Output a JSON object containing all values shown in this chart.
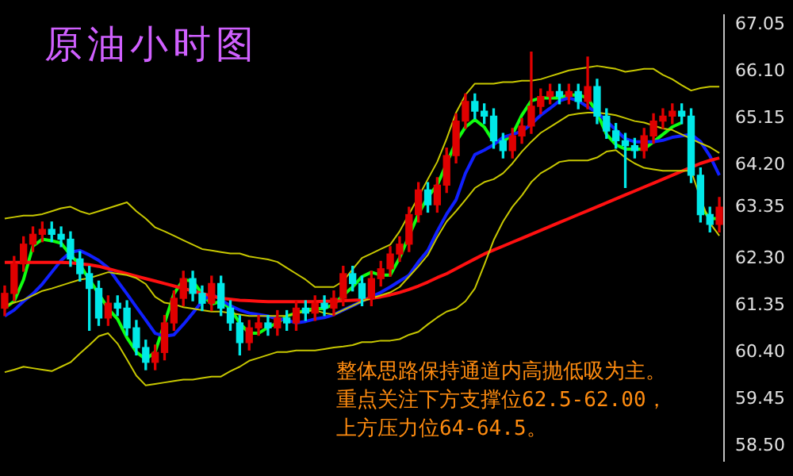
{
  "chart_data": {
    "type": "candlestick",
    "title": "原油小时图",
    "annotations": [
      "整体思路保持通道内高抛低吸为主。",
      "重点关注下方支撑位62.5-62.00，",
      "上方压力位64-64.5。"
    ],
    "categories": [
      null,
      null,
      null,
      null,
      null,
      null,
      null,
      null,
      null,
      null,
      null,
      null,
      null,
      null,
      null,
      null,
      null,
      null,
      null,
      null,
      null,
      null,
      null,
      null,
      null,
      null,
      null,
      null,
      null,
      null,
      null,
      null,
      null,
      null,
      null,
      null,
      null,
      null,
      null,
      null,
      null,
      null,
      null,
      null,
      null,
      null,
      null,
      null,
      null,
      null,
      null,
      null,
      null,
      null,
      null,
      null,
      null,
      null,
      null,
      null,
      null,
      null,
      null,
      null,
      null,
      null,
      null,
      null,
      null,
      null,
      null,
      null,
      null,
      null,
      null,
      null,
      null
    ],
    "ohlc": [
      [
        61.3,
        61.75,
        61.15,
        61.6
      ],
      [
        61.6,
        62.35,
        61.45,
        62.2
      ],
      [
        62.2,
        62.75,
        62.05,
        62.6
      ],
      [
        62.6,
        62.95,
        62.45,
        62.8
      ],
      [
        62.8,
        63.05,
        62.65,
        62.9
      ],
      [
        62.9,
        63.05,
        62.65,
        62.8
      ],
      [
        62.8,
        62.95,
        62.55,
        62.7
      ],
      [
        62.7,
        62.85,
        62.15,
        62.3
      ],
      [
        62.3,
        62.45,
        61.85,
        62.0
      ],
      [
        62.0,
        62.15,
        60.85,
        61.7
      ],
      [
        61.7,
        61.85,
        60.95,
        61.1
      ],
      [
        61.1,
        61.55,
        60.95,
        61.4
      ],
      [
        61.4,
        61.55,
        61.15,
        61.3
      ],
      [
        61.3,
        61.45,
        60.75,
        60.9
      ],
      [
        60.9,
        61.05,
        60.35,
        60.5
      ],
      [
        60.5,
        60.65,
        60.05,
        60.2
      ],
      [
        60.2,
        60.55,
        60.05,
        60.4
      ],
      [
        60.4,
        61.15,
        60.25,
        61.0
      ],
      [
        61.0,
        61.65,
        60.85,
        61.5
      ],
      [
        61.5,
        62.05,
        61.35,
        61.9
      ],
      [
        61.9,
        62.05,
        61.45,
        61.6
      ],
      [
        61.6,
        61.75,
        61.25,
        61.4
      ],
      [
        61.4,
        61.95,
        61.25,
        61.8
      ],
      [
        61.8,
        61.95,
        61.15,
        61.3
      ],
      [
        61.3,
        61.45,
        60.85,
        61.0
      ],
      [
        61.0,
        61.15,
        60.35,
        60.6
      ],
      [
        60.6,
        61.05,
        60.45,
        60.9
      ],
      [
        60.9,
        61.15,
        60.75,
        61.0
      ],
      [
        61.0,
        61.15,
        60.75,
        60.9
      ],
      [
        60.9,
        61.25,
        60.75,
        61.1
      ],
      [
        61.1,
        61.25,
        60.85,
        61.0
      ],
      [
        61.0,
        61.45,
        60.85,
        61.3
      ],
      [
        61.3,
        61.45,
        61.05,
        61.2
      ],
      [
        61.2,
        61.55,
        61.05,
        61.4
      ],
      [
        61.4,
        61.55,
        61.15,
        61.3
      ],
      [
        61.3,
        61.65,
        61.15,
        61.5
      ],
      [
        61.5,
        62.15,
        61.35,
        62.0
      ],
      [
        62.0,
        62.15,
        61.65,
        61.8
      ],
      [
        61.8,
        61.95,
        61.35,
        61.5
      ],
      [
        61.5,
        62.05,
        61.35,
        61.9
      ],
      [
        61.9,
        62.25,
        61.75,
        62.1
      ],
      [
        62.1,
        62.55,
        61.95,
        62.4
      ],
      [
        62.4,
        62.75,
        62.25,
        62.6
      ],
      [
        62.6,
        63.35,
        62.45,
        63.2
      ],
      [
        63.2,
        63.85,
        63.05,
        63.7
      ],
      [
        63.7,
        63.85,
        63.25,
        63.4
      ],
      [
        63.4,
        63.95,
        63.25,
        63.8
      ],
      [
        63.8,
        64.55,
        63.65,
        64.4
      ],
      [
        64.4,
        65.25,
        64.25,
        65.1
      ],
      [
        65.1,
        65.65,
        64.95,
        65.5
      ],
      [
        65.5,
        65.65,
        65.15,
        65.3
      ],
      [
        65.3,
        65.45,
        65.05,
        65.2
      ],
      [
        65.2,
        65.35,
        64.55,
        64.7
      ],
      [
        64.7,
        64.85,
        64.35,
        64.5
      ],
      [
        64.5,
        64.95,
        64.35,
        64.8
      ],
      [
        64.8,
        65.15,
        64.65,
        65.0
      ],
      [
        65.0,
        66.5,
        64.85,
        65.4
      ],
      [
        65.4,
        65.75,
        65.25,
        65.6
      ],
      [
        65.6,
        65.85,
        65.45,
        65.7
      ],
      [
        65.7,
        65.85,
        65.45,
        65.6
      ],
      [
        65.6,
        65.85,
        65.45,
        65.7
      ],
      [
        65.7,
        65.85,
        65.35,
        65.5
      ],
      [
        65.5,
        66.4,
        65.35,
        65.8
      ],
      [
        65.8,
        65.95,
        65.05,
        65.2
      ],
      [
        65.2,
        65.35,
        64.75,
        64.9
      ],
      [
        64.9,
        65.05,
        64.55,
        64.7
      ],
      [
        64.7,
        64.85,
        63.75,
        64.6
      ],
      [
        64.6,
        64.75,
        64.35,
        64.5
      ],
      [
        64.5,
        64.95,
        64.35,
        64.8
      ],
      [
        64.8,
        65.25,
        64.65,
        65.1
      ],
      [
        65.1,
        65.35,
        64.95,
        65.2
      ],
      [
        65.2,
        65.45,
        65.05,
        65.3
      ],
      [
        65.3,
        65.45,
        65.05,
        65.2
      ],
      [
        65.2,
        65.35,
        63.85,
        64.0
      ],
      [
        64.0,
        64.15,
        63.05,
        63.2
      ],
      [
        63.2,
        63.35,
        62.85,
        63.0
      ],
      [
        63.0,
        63.55,
        62.85,
        63.35
      ]
    ],
    "colors": [
      "#e00000",
      "#e00000",
      "#e00000",
      "#e00000",
      "#e00000",
      "#00e8e8",
      "#00e8e8",
      "#00e8e8",
      "#00e8e8",
      "#00e8e8",
      "#00e8e8",
      "#e00000",
      "#00e8e8",
      "#00e8e8",
      "#00e8e8",
      "#00e8e8",
      "#e00000",
      "#e00000",
      "#e00000",
      "#e00000",
      "#00e8e8",
      "#00e8e8",
      "#e00000",
      "#00e8e8",
      "#00e8e8",
      "#00e8e8",
      "#e00000",
      "#e00000",
      "#00e8e8",
      "#e00000",
      "#00e8e8",
      "#e00000",
      "#00e8e8",
      "#e00000",
      "#00e8e8",
      "#e00000",
      "#e00000",
      "#00e8e8",
      "#00e8e8",
      "#e00000",
      "#e00000",
      "#e00000",
      "#e00000",
      "#e00000",
      "#e00000",
      "#00e8e8",
      "#e00000",
      "#e00000",
      "#e00000",
      "#e00000",
      "#00e8e8",
      "#00e8e8",
      "#00e8e8",
      "#00e8e8",
      "#e00000",
      "#e00000",
      "#e00000",
      "#e00000",
      "#e00000",
      "#00e8e8",
      "#e00000",
      "#00e8e8",
      "#e00000",
      "#00e8e8",
      "#00e8e8",
      "#00e8e8",
      "#00e8e8",
      "#00e8e8",
      "#e00000",
      "#e00000",
      "#e00000",
      "#e00000",
      "#00e8e8",
      "#00e8e8",
      "#00e8e8",
      "#00e8e8",
      "#e00000"
    ],
    "series": [
      {
        "type": "line",
        "color": "#c8c800",
        "values": [
          63.12,
          63.15,
          63.18,
          63.18,
          63.21,
          63.27,
          63.33,
          63.36,
          63.27,
          63.21,
          63.27,
          63.33,
          63.39,
          63.45,
          63.27,
          63.12,
          62.94,
          62.86,
          62.77,
          62.68,
          62.59,
          62.5,
          62.47,
          62.44,
          62.41,
          62.41,
          62.35,
          62.32,
          62.29,
          62.24,
          62.12,
          62.0,
          61.88,
          61.73,
          61.73,
          61.73,
          61.85,
          62.09,
          62.32,
          62.41,
          62.5,
          62.59,
          62.86,
          63.21,
          63.56,
          63.92,
          64.27,
          64.74,
          65.27,
          65.63,
          65.86,
          65.86,
          65.86,
          65.89,
          65.89,
          65.92,
          65.92,
          65.95,
          66.01,
          66.07,
          66.13,
          66.16,
          66.19,
          66.22,
          66.19,
          66.16,
          66.1,
          66.13,
          66.16,
          66.16,
          66.04,
          65.95,
          65.83,
          65.72,
          65.77,
          65.8,
          65.8
        ]
      },
      {
        "type": "line",
        "color": "#c8c800",
        "values": [
          61.35,
          61.41,
          61.47,
          61.56,
          61.65,
          61.7,
          61.76,
          61.82,
          61.88,
          61.91,
          61.97,
          62.03,
          62.0,
          61.97,
          61.91,
          61.79,
          61.53,
          61.41,
          61.38,
          61.32,
          61.29,
          61.26,
          61.23,
          61.23,
          61.2,
          61.17,
          61.14,
          61.14,
          61.14,
          61.14,
          61.14,
          61.2,
          61.23,
          61.26,
          61.2,
          61.17,
          61.26,
          61.35,
          61.44,
          61.5,
          61.56,
          61.62,
          61.73,
          61.94,
          62.15,
          62.38,
          62.74,
          63.06,
          63.27,
          63.5,
          63.74,
          63.86,
          63.92,
          64.04,
          64.24,
          64.48,
          64.68,
          64.86,
          64.98,
          65.1,
          65.22,
          65.25,
          65.27,
          65.27,
          65.25,
          65.22,
          65.16,
          65.1,
          65.07,
          65.01,
          64.95,
          64.92,
          64.83,
          64.74,
          64.65,
          64.57,
          64.45
        ]
      },
      {
        "type": "line",
        "color": "#c8c800",
        "values": [
          60.0,
          60.05,
          60.11,
          60.08,
          60.05,
          60.02,
          60.11,
          60.2,
          60.38,
          60.55,
          60.73,
          60.79,
          60.58,
          60.26,
          59.93,
          59.73,
          59.76,
          59.79,
          59.82,
          59.85,
          59.85,
          59.88,
          59.91,
          59.91,
          60.02,
          60.11,
          60.23,
          60.29,
          60.35,
          60.41,
          60.41,
          60.44,
          60.44,
          60.44,
          60.47,
          60.5,
          60.52,
          60.55,
          60.61,
          60.61,
          60.64,
          60.64,
          60.67,
          60.76,
          60.82,
          60.97,
          61.11,
          61.23,
          61.29,
          61.44,
          61.7,
          62.18,
          62.68,
          63.06,
          63.36,
          63.59,
          63.86,
          64.04,
          64.15,
          64.27,
          64.3,
          64.3,
          64.3,
          64.36,
          64.48,
          64.51,
          64.36,
          64.24,
          64.15,
          64.12,
          64.09,
          64.09,
          64.09,
          64.09,
          63.53,
          63.03,
          62.77
        ]
      },
      {
        "type": "line",
        "color": "#ff1010",
        "values": [
          62.23,
          62.23,
          62.23,
          62.23,
          62.23,
          62.23,
          62.23,
          62.22,
          62.2,
          62.18,
          62.15,
          62.1,
          62.05,
          62.0,
          61.95,
          61.9,
          61.85,
          61.8,
          61.75,
          61.7,
          61.65,
          61.6,
          61.55,
          61.5,
          61.48,
          61.46,
          61.45,
          61.44,
          61.43,
          61.43,
          61.43,
          61.43,
          61.43,
          61.43,
          61.44,
          61.44,
          61.45,
          61.46,
          61.47,
          61.5,
          61.53,
          61.57,
          61.62,
          61.68,
          61.75,
          61.83,
          61.92,
          62.0,
          62.1,
          62.2,
          62.3,
          62.4,
          62.48,
          62.56,
          62.64,
          62.72,
          62.8,
          62.88,
          62.96,
          63.04,
          63.12,
          63.2,
          63.28,
          63.36,
          63.44,
          63.52,
          63.6,
          63.68,
          63.76,
          63.84,
          63.92,
          64.0,
          64.08,
          64.16,
          64.24,
          64.3,
          64.35
        ]
      },
      {
        "type": "line",
        "color": "#1020ff",
        "values": [
          61.14,
          61.26,
          61.44,
          61.59,
          61.79,
          62.03,
          62.27,
          62.44,
          62.47,
          62.38,
          62.27,
          62.12,
          61.85,
          61.59,
          61.32,
          61.06,
          60.79,
          60.73,
          60.76,
          60.97,
          61.2,
          61.44,
          61.59,
          61.47,
          61.35,
          61.26,
          61.2,
          61.17,
          61.14,
          61.08,
          61.06,
          61.0,
          61.03,
          61.08,
          61.11,
          61.17,
          61.26,
          61.35,
          61.44,
          61.53,
          61.62,
          61.73,
          61.85,
          61.97,
          62.24,
          62.47,
          62.86,
          63.21,
          63.5,
          64.04,
          64.42,
          64.51,
          64.62,
          64.77,
          64.83,
          64.89,
          65.04,
          65.22,
          65.36,
          65.51,
          65.57,
          65.51,
          65.39,
          65.27,
          65.1,
          64.92,
          64.74,
          64.68,
          64.68,
          64.68,
          64.71,
          64.77,
          64.8,
          64.83,
          64.68,
          64.39,
          64.0
        ]
      },
      {
        "type": "line",
        "color": "#10ff10",
        "values": [
          61.3,
          61.44,
          61.88,
          62.56,
          62.7,
          62.67,
          62.62,
          62.38,
          62.18,
          61.88,
          61.59,
          61.29,
          61.08,
          60.7,
          60.41,
          60.26,
          60.41,
          61.0,
          61.59,
          61.88,
          61.85,
          61.59,
          61.38,
          61.44,
          61.29,
          61.0,
          60.79,
          60.79,
          60.91,
          61.0,
          61.14,
          61.2,
          61.26,
          61.29,
          61.29,
          61.38,
          61.56,
          61.73,
          61.94,
          62.03,
          61.97,
          61.97,
          62.32,
          62.77,
          63.21,
          63.56,
          63.8,
          64.24,
          64.68,
          64.98,
          65.13,
          64.98,
          64.68,
          64.68,
          64.83,
          65.22,
          65.51,
          65.57,
          65.57,
          65.57,
          65.63,
          65.63,
          65.57,
          65.27,
          64.83,
          64.62,
          64.53,
          64.53,
          64.53,
          64.68,
          64.83,
          64.98,
          65.07,
          null,
          63.36,
          63.12,
          63.12
        ]
      }
    ],
    "ylim": [
      58.2,
      67.25
    ],
    "yticks": [
      {
        "value": 58.5,
        "label": "58.50"
      },
      {
        "value": 59.45,
        "label": "59.45"
      },
      {
        "value": 60.4,
        "label": "60.40"
      },
      {
        "value": 61.35,
        "label": "61.35"
      },
      {
        "value": 62.3,
        "label": "62.30"
      },
      {
        "value": 63.35,
        "label": "63.35"
      },
      {
        "value": 64.2,
        "label": "64.20"
      },
      {
        "value": 65.15,
        "label": "65.15"
      },
      {
        "value": 66.1,
        "label": "66.10"
      },
      {
        "value": 67.05,
        "label": "67.05"
      }
    ],
    "tick_labels": "y"
  }
}
